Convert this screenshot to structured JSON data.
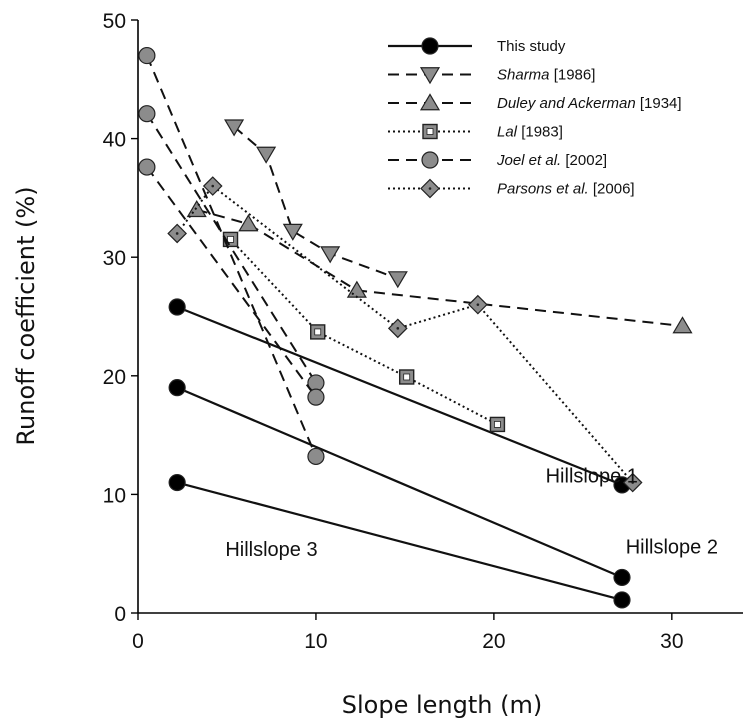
{
  "chart_data": {
    "type": "line",
    "xlabel": "Slope length (m)",
    "ylabel": "Runoff coefficient (%)",
    "xlim": [
      0,
      34
    ],
    "ylim": [
      0,
      50
    ],
    "xticks": [
      0,
      10,
      20,
      30
    ],
    "yticks": [
      0,
      10,
      20,
      30,
      40,
      50
    ],
    "grid": false,
    "legend_position": "top-right",
    "series": [
      {
        "name": "This study",
        "name_italic": "This study",
        "name_rest": "",
        "line": "solid",
        "marker": "circle",
        "color": "#000000",
        "points": [
          [
            2.2,
            25.8
          ],
          [
            27.2,
            10.8
          ]
        ]
      },
      {
        "name": "This study",
        "name_italic": "",
        "name_rest": "",
        "line": "solid",
        "marker": "circle",
        "color": "#000000",
        "in_legend": false,
        "points": [
          [
            2.2,
            19.0
          ],
          [
            27.2,
            3.0
          ]
        ]
      },
      {
        "name": "This study",
        "name_italic": "",
        "name_rest": "",
        "line": "solid",
        "marker": "circle",
        "color": "#000000",
        "in_legend": false,
        "points": [
          [
            2.2,
            11.0
          ],
          [
            27.2,
            1.1
          ]
        ]
      },
      {
        "name": "Sharma [1986]",
        "name_italic": "Sharma",
        "name_rest": " [1986]",
        "line": "dashed",
        "marker": "triangle-down",
        "color": "#8c8c8c",
        "points": [
          [
            5.4,
            41.0
          ],
          [
            7.2,
            38.7
          ],
          [
            8.7,
            32.2
          ],
          [
            10.8,
            30.3
          ],
          [
            14.6,
            28.2
          ]
        ]
      },
      {
        "name": "Duley and Ackerman [1934]",
        "name_italic": "Duley and Ackerman",
        "name_rest": " [1934]",
        "line": "dashed",
        "marker": "triangle-up",
        "color": "#8c8c8c",
        "points": [
          [
            3.3,
            34.0
          ],
          [
            6.2,
            32.8
          ],
          [
            12.3,
            27.2
          ],
          [
            30.6,
            24.2
          ]
        ]
      },
      {
        "name": "Lal [1983]",
        "name_italic": "Lal",
        "name_rest": " [1983]",
        "line": "dotted",
        "marker": "square",
        "color": "#8c8c8c",
        "points": [
          [
            5.2,
            31.5
          ],
          [
            10.1,
            23.7
          ],
          [
            15.1,
            19.9
          ],
          [
            20.2,
            15.9
          ]
        ]
      },
      {
        "name": "Joel et al. [2002]",
        "name_italic": "Joel et al.",
        "name_rest": " [2002]",
        "line": "dashed",
        "marker": "circle",
        "color": "#8c8c8c",
        "points": [
          [
            0.5,
            47.0
          ],
          [
            10.0,
            13.2
          ]
        ]
      },
      {
        "name": "Joel et al. [2002]",
        "name_italic": "",
        "name_rest": "",
        "line": "dashed",
        "marker": "circle",
        "color": "#8c8c8c",
        "in_legend": false,
        "points": [
          [
            0.5,
            42.1
          ],
          [
            10.0,
            19.4
          ]
        ]
      },
      {
        "name": "Joel et al. [2002]",
        "name_italic": "",
        "name_rest": "",
        "line": "dashed",
        "marker": "circle",
        "color": "#8c8c8c",
        "in_legend": false,
        "points": [
          [
            0.5,
            37.6
          ],
          [
            10.0,
            18.2
          ]
        ]
      },
      {
        "name": "Parsons et al. [2006]",
        "name_italic": "Parsons et al.",
        "name_rest": " [2006]",
        "line": "dotted",
        "marker": "diamond",
        "color": "#8c8c8c",
        "points": [
          [
            2.2,
            32.0
          ],
          [
            4.2,
            36.0
          ],
          [
            14.6,
            24.0
          ],
          [
            19.1,
            26.0
          ],
          [
            27.8,
            11.0
          ]
        ]
      }
    ],
    "annotations": [
      {
        "text": "Hillslope 1",
        "x": 25.5,
        "y": 11.0
      },
      {
        "text": "Hillslope 2",
        "x": 30.0,
        "y": 5.0
      },
      {
        "text": "Hillslope 3",
        "x": 7.5,
        "y": 4.8
      }
    ]
  }
}
